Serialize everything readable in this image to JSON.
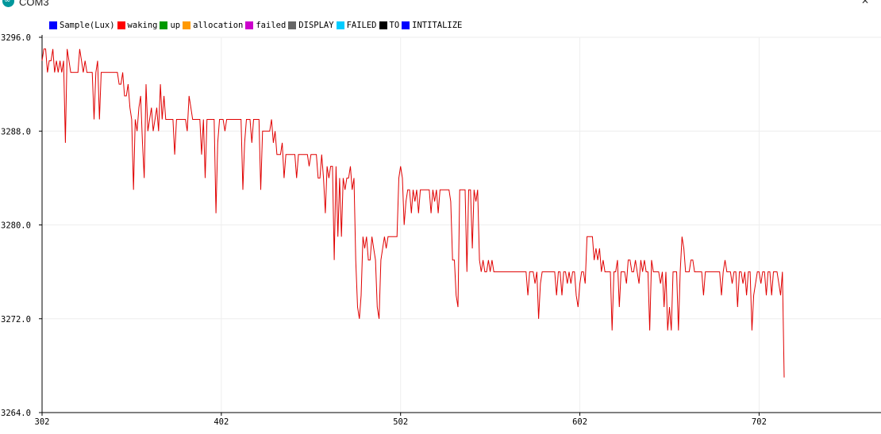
{
  "window": {
    "title": "COM3",
    "icon": "arduino-logo-icon",
    "close_icon": "close-icon"
  },
  "chart_data": {
    "type": "line",
    "title": "",
    "xlabel": "",
    "ylabel": "",
    "xlim": [
      302,
      770
    ],
    "ylim": [
      3264,
      3296
    ],
    "x_ticks": [
      "302",
      "402",
      "502",
      "602",
      "702"
    ],
    "y_ticks": [
      "3264.0",
      "3272.0",
      "3280.0",
      "3288.0",
      "3296.0"
    ],
    "grid": true,
    "legend": {
      "placement": "top-left",
      "entries": [
        {
          "name": "Sample(Lux)",
          "color": "#0000ff"
        },
        {
          "name": "waking",
          "color": "#ff0000"
        },
        {
          "name": "up",
          "color": "#009900"
        },
        {
          "name": "allocation",
          "color": "#ff9900"
        },
        {
          "name": "failed",
          "color": "#cc00cc"
        },
        {
          "name": "DISPLAY",
          "color": "#666666"
        },
        {
          "name": "FAILED",
          "color": "#00ccff"
        },
        {
          "name": "TO",
          "color": "#000000"
        },
        {
          "name": "INTITALIZE",
          "color": "#0000ff"
        }
      ]
    },
    "series": [
      {
        "color": "#e00000",
        "x_start": 302,
        "values": [
          3294,
          3295,
          3295,
          3293,
          3294,
          3294,
          3295,
          3293,
          3294,
          3293,
          3294,
          3293,
          3294,
          3287,
          3295,
          3294,
          3293,
          3293,
          3293,
          3293,
          3293,
          3295,
          3294,
          3293,
          3294,
          3293,
          3293,
          3293,
          3293,
          3289,
          3293,
          3294,
          3289,
          3293,
          3293,
          3293,
          3293,
          3293,
          3293,
          3293,
          3293,
          3293,
          3293,
          3292,
          3292,
          3293,
          3291,
          3291,
          3292,
          3290,
          3289,
          3283,
          3289,
          3288,
          3290,
          3291,
          3287,
          3284,
          3292,
          3288,
          3289,
          3290,
          3288,
          3289,
          3290,
          3288,
          3292,
          3289,
          3291,
          3289,
          3289,
          3289,
          3289,
          3289,
          3286,
          3289,
          3289,
          3289,
          3289,
          3289,
          3289,
          3288,
          3291,
          3290,
          3289,
          3289,
          3289,
          3289,
          3289,
          3286,
          3289,
          3284,
          3289,
          3289,
          3289,
          3289,
          3289,
          3281,
          3287,
          3289,
          3289,
          3289,
          3288,
          3289,
          3289,
          3289,
          3289,
          3289,
          3289,
          3289,
          3289,
          3289,
          3283,
          3287,
          3289,
          3289,
          3289,
          3287,
          3289,
          3289,
          3289,
          3289,
          3283,
          3288,
          3288,
          3288,
          3288,
          3288,
          3289,
          3287,
          3288,
          3286,
          3286,
          3286,
          3287,
          3284,
          3286,
          3286,
          3286,
          3286,
          3286,
          3286,
          3284,
          3286,
          3286,
          3286,
          3286,
          3286,
          3286,
          3285,
          3286,
          3286,
          3286,
          3286,
          3284,
          3284,
          3286,
          3284,
          3281,
          3285,
          3284,
          3285,
          3285,
          3277,
          3285,
          3279,
          3284,
          3279,
          3284,
          3283,
          3284,
          3284,
          3285,
          3283,
          3284,
          3277,
          3273,
          3272,
          3274,
          3279,
          3278,
          3279,
          3277,
          3277,
          3279,
          3278,
          3277,
          3273,
          3272,
          3277,
          3278,
          3279,
          3278,
          3279,
          3279,
          3279,
          3279,
          3279,
          3279,
          3284,
          3285,
          3284,
          3280,
          3282,
          3283,
          3283,
          3281,
          3283,
          3282,
          3283,
          3281,
          3283,
          3283,
          3283,
          3283,
          3283,
          3283,
          3281,
          3283,
          3282,
          3283,
          3281,
          3283,
          3283,
          3283,
          3283,
          3283,
          3283,
          3282,
          3277,
          3277,
          3274,
          3273,
          3283,
          3283,
          3283,
          3283,
          3276,
          3283,
          3283,
          3278,
          3283,
          3282,
          3283,
          3277,
          3276,
          3277,
          3276,
          3276,
          3277,
          3276,
          3277,
          3276,
          3276,
          3276,
          3276,
          3276,
          3276,
          3276,
          3276,
          3276,
          3276,
          3276,
          3276,
          3276,
          3276,
          3276,
          3276,
          3276,
          3276,
          3276,
          3274,
          3276,
          3276,
          3276,
          3275,
          3276,
          3272,
          3275,
          3276,
          3276,
          3276,
          3276,
          3276,
          3276,
          3276,
          3276,
          3274,
          3276,
          3276,
          3274,
          3276,
          3276,
          3275,
          3276,
          3275,
          3276,
          3276,
          3274,
          3273,
          3275,
          3276,
          3276,
          3275,
          3279,
          3279,
          3279,
          3279,
          3277,
          3278,
          3277,
          3278,
          3276,
          3277,
          3276,
          3276,
          3276,
          3276,
          3271,
          3276,
          3276,
          3277,
          3273,
          3276,
          3276,
          3276,
          3275,
          3277,
          3277,
          3276,
          3276,
          3277,
          3276,
          3275,
          3277,
          3276,
          3277,
          3276,
          3276,
          3271,
          3277,
          3276,
          3276,
          3276,
          3276,
          3275,
          3276,
          3273,
          3276,
          3271,
          3273,
          3271,
          3276,
          3276,
          3276,
          3271,
          3276,
          3279,
          3278,
          3276,
          3276,
          3276,
          3277,
          3277,
          3276,
          3276,
          3276,
          3276,
          3276,
          3274,
          3276,
          3276,
          3276,
          3276,
          3276,
          3276,
          3276,
          3276,
          3276,
          3274,
          3276,
          3277,
          3276,
          3276,
          3276,
          3275,
          3276,
          3276,
          3273,
          3276,
          3276,
          3275,
          3276,
          3274,
          3276,
          3276,
          3271,
          3274,
          3275,
          3276,
          3276,
          3275,
          3276,
          3276,
          3274,
          3276,
          3276,
          3274,
          3276,
          3276,
          3276,
          3275,
          3274,
          3276,
          3267
        ]
      }
    ]
  }
}
